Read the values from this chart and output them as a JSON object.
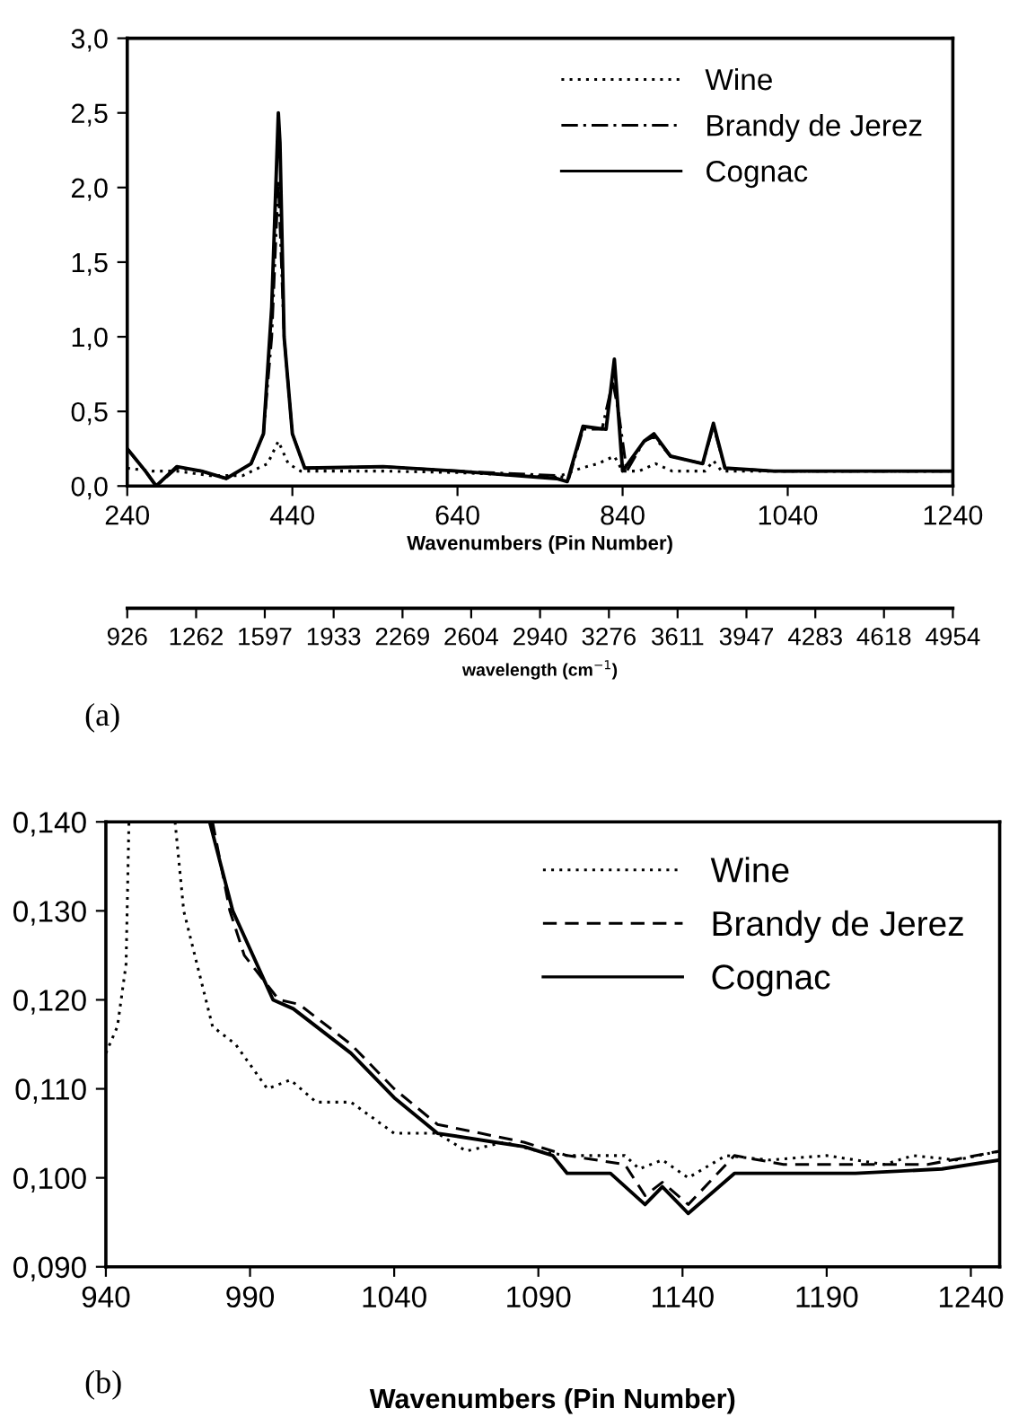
{
  "chart_data": [
    {
      "type": "line",
      "xlabel": "Wavenumbers (Pin Number)",
      "x2label": "wavelength (cm$^{−1}$)",
      "annotations": [
        "(a)"
      ],
      "legend": "top right",
      "grid": false,
      "xlim": [
        240,
        1240
      ],
      "xticks": [
        240,
        440,
        640,
        840,
        1040,
        1240
      ],
      "ylim": [
        0,
        3
      ],
      "yticks": [
        {
          "value": 0,
          "label": "0,0"
        },
        {
          "value": 0.5,
          "label": "0,5"
        },
        {
          "value": 1,
          "label": "1,0"
        },
        {
          "value": 1.5,
          "label": "1,5"
        },
        {
          "value": 2,
          "label": "2,0"
        },
        {
          "value": 2.5,
          "label": "2,5"
        },
        {
          "value": 3,
          "label": "3,0"
        }
      ],
      "x2lim": [
        926,
        4954
      ],
      "x2ticks": [
        926,
        1262,
        1597,
        1933,
        2269,
        2604,
        2940,
        3276,
        3611,
        3947,
        4283,
        4618,
        4954
      ],
      "series": [
        {
          "name": "Wine",
          "color": "#000000",
          "line_style": "dotted",
          "x": [
            240,
            270,
            300,
            340,
            380,
            410,
            423,
            435,
            450,
            550,
            640,
            760,
            790,
            810,
            830,
            840,
            860,
            880,
            900,
            940,
            950,
            960,
            1040,
            1240
          ],
          "values": [
            0.12,
            0.1,
            0.1,
            0.07,
            0.07,
            0.15,
            0.3,
            0.15,
            0.1,
            0.1,
            0.09,
            0.06,
            0.12,
            0.15,
            0.2,
            0.1,
            0.1,
            0.15,
            0.1,
            0.1,
            0.17,
            0.1,
            0.1,
            0.1
          ]
        },
        {
          "name": "Brandy de Jerez",
          "color": "#000000",
          "line_style": "dashdot",
          "x": [
            240,
            262,
            275,
            300,
            330,
            360,
            390,
            405,
            415,
            423,
            430,
            440,
            455,
            550,
            640,
            760,
            775,
            792,
            815,
            828,
            835,
            845,
            866,
            878,
            898,
            937,
            950,
            964,
            1023,
            1240
          ],
          "values": [
            0.25,
            0.1,
            0.0,
            0.12,
            0.1,
            0.05,
            0.15,
            0.35,
            1.0,
            2.05,
            1.0,
            0.35,
            0.12,
            0.13,
            0.1,
            0.07,
            0.05,
            0.38,
            0.38,
            0.7,
            0.5,
            0.1,
            0.3,
            0.33,
            0.2,
            0.15,
            0.4,
            0.12,
            0.1,
            0.1
          ]
        },
        {
          "name": "Cognac",
          "color": "#000000",
          "line_style": "solid",
          "x": [
            240,
            262,
            275,
            300,
            330,
            360,
            390,
            405,
            415,
            423,
            425,
            430,
            440,
            455,
            550,
            640,
            760,
            773,
            792,
            820,
            830,
            840,
            866,
            878,
            898,
            937,
            950,
            964,
            1023,
            1240
          ],
          "values": [
            0.25,
            0.1,
            0.0,
            0.13,
            0.1,
            0.05,
            0.15,
            0.35,
            1.2,
            2.5,
            2.3,
            1.0,
            0.35,
            0.12,
            0.13,
            0.1,
            0.05,
            0.03,
            0.4,
            0.38,
            0.85,
            0.1,
            0.3,
            0.35,
            0.2,
            0.15,
            0.42,
            0.12,
            0.1,
            0.1
          ]
        }
      ]
    },
    {
      "type": "line",
      "xlabel": "Wavenumbers (Pin Number)",
      "annotations": [
        "(b)"
      ],
      "legend": "top right",
      "grid": false,
      "xlim": [
        940,
        1250
      ],
      "xticks": [
        940,
        990,
        1040,
        1090,
        1140,
        1190,
        1240
      ],
      "ylim": [
        0.09,
        0.14
      ],
      "yticks": [
        {
          "value": 0.09,
          "label": "0,090"
        },
        {
          "value": 0.1,
          "label": "0,100"
        },
        {
          "value": 0.11,
          "label": "0,110"
        },
        {
          "value": 0.12,
          "label": "0,120"
        },
        {
          "value": 0.13,
          "label": "0,130"
        },
        {
          "value": 0.14,
          "label": "0,140"
        }
      ],
      "series": [
        {
          "name": "Wine",
          "color": "#000000",
          "line_style": "dotted",
          "x": [
            940,
            944,
            947,
            948,
            955,
            964,
            967,
            977,
            985,
            996,
            1004,
            1013,
            1025,
            1040,
            1055,
            1065,
            1078,
            1090,
            1100,
            1120,
            1125,
            1133,
            1142,
            1155,
            1170,
            1190,
            1210,
            1220,
            1235,
            1250
          ],
          "values": [
            0.114,
            0.117,
            0.124,
            0.14,
            null,
            0.14,
            0.13,
            0.117,
            0.115,
            0.11,
            0.111,
            0.1085,
            0.1085,
            0.105,
            0.105,
            0.103,
            0.104,
            0.103,
            0.1025,
            0.1025,
            0.101,
            0.102,
            0.1,
            0.1025,
            0.102,
            0.1025,
            0.1015,
            0.1025,
            0.102,
            0.103
          ]
        },
        {
          "name": "Brandy de Jerez",
          "color": "#000000",
          "line_style": "dashed",
          "x": [
            977,
            983,
            988,
            1000,
            1007,
            1025,
            1040,
            1055,
            1070,
            1085,
            1100,
            1120,
            1127,
            1133,
            1142,
            1158,
            1175,
            1200,
            1225,
            1250
          ],
          "values": [
            0.14,
            0.13,
            0.125,
            0.12,
            0.1195,
            0.115,
            0.11,
            0.106,
            0.105,
            0.104,
            0.1025,
            0.1015,
            0.098,
            0.0995,
            0.097,
            0.1025,
            0.1015,
            0.1015,
            0.1015,
            0.103
          ]
        },
        {
          "name": "Cognac",
          "color": "#000000",
          "line_style": "solid",
          "x": [
            976,
            984,
            998,
            1005,
            1025,
            1040,
            1055,
            1075,
            1085,
            1095,
            1100,
            1115,
            1127,
            1133,
            1142,
            1158,
            1200,
            1230,
            1250
          ],
          "values": [
            0.14,
            0.13,
            0.12,
            0.119,
            0.114,
            0.109,
            0.105,
            0.104,
            0.1035,
            0.1025,
            0.1005,
            0.1005,
            0.097,
            0.099,
            0.096,
            0.1005,
            0.1005,
            0.101,
            0.102
          ]
        }
      ]
    }
  ]
}
